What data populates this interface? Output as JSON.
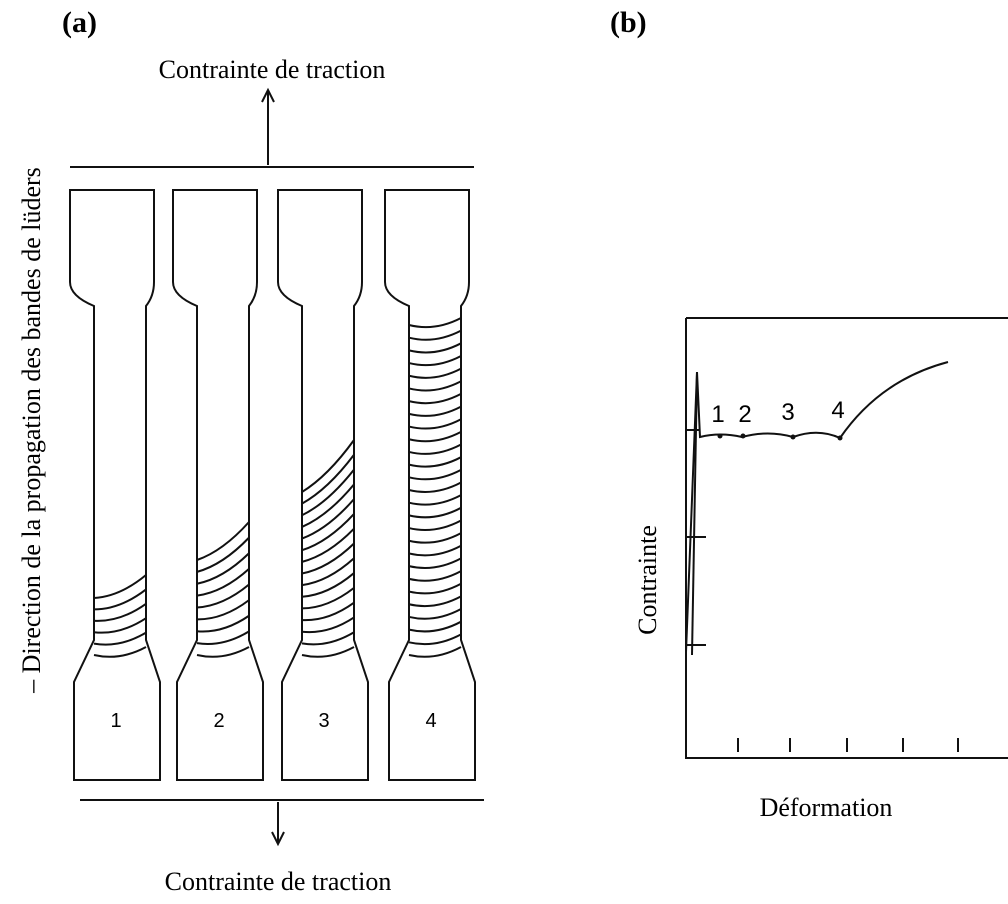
{
  "panel_a": {
    "label": "(a)",
    "top_load": "Contrainte de traction",
    "bottom_load": "Contrainte de traction",
    "direction_label": "– Direction de la propagation des bandes de lüders",
    "specimens": [
      "1",
      "2",
      "3",
      "4"
    ]
  },
  "panel_b": {
    "label": "(b)",
    "y_axis_label": "Contrainte",
    "x_axis_label": "Déformation",
    "points": [
      "1",
      "2",
      "3",
      "4"
    ]
  }
}
